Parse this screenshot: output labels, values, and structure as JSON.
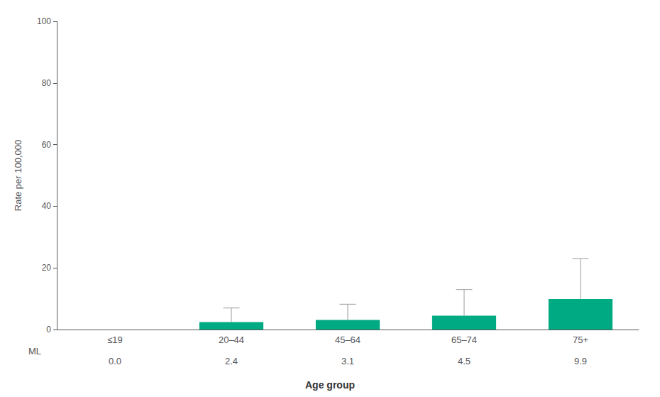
{
  "chart_data": {
    "type": "bar",
    "categories": [
      "≤19",
      "20–44",
      "45–64",
      "65–74",
      "75+"
    ],
    "values": [
      0.0,
      2.4,
      3.1,
      4.5,
      9.9
    ],
    "color": "#00AA82",
    "error_bars": {
      "color": "#aaaaaa",
      "top": [
        0.0,
        7.0,
        8.2,
        13.0,
        23.0
      ]
    },
    "table": {
      "label": "ML",
      "values": [
        0.0,
        2.4,
        3.1,
        4.5,
        9.9
      ],
      "value_labels": [
        "0.0",
        "2.4",
        "3.1",
        "4.5",
        "9.9"
      ]
    },
    "xlabel": "Age group",
    "ylabel": "Rate per 100,000",
    "ylim": [
      0,
      100
    ],
    "yticks": [
      0,
      20,
      40,
      60,
      80,
      100
    ],
    "grid": false
  }
}
